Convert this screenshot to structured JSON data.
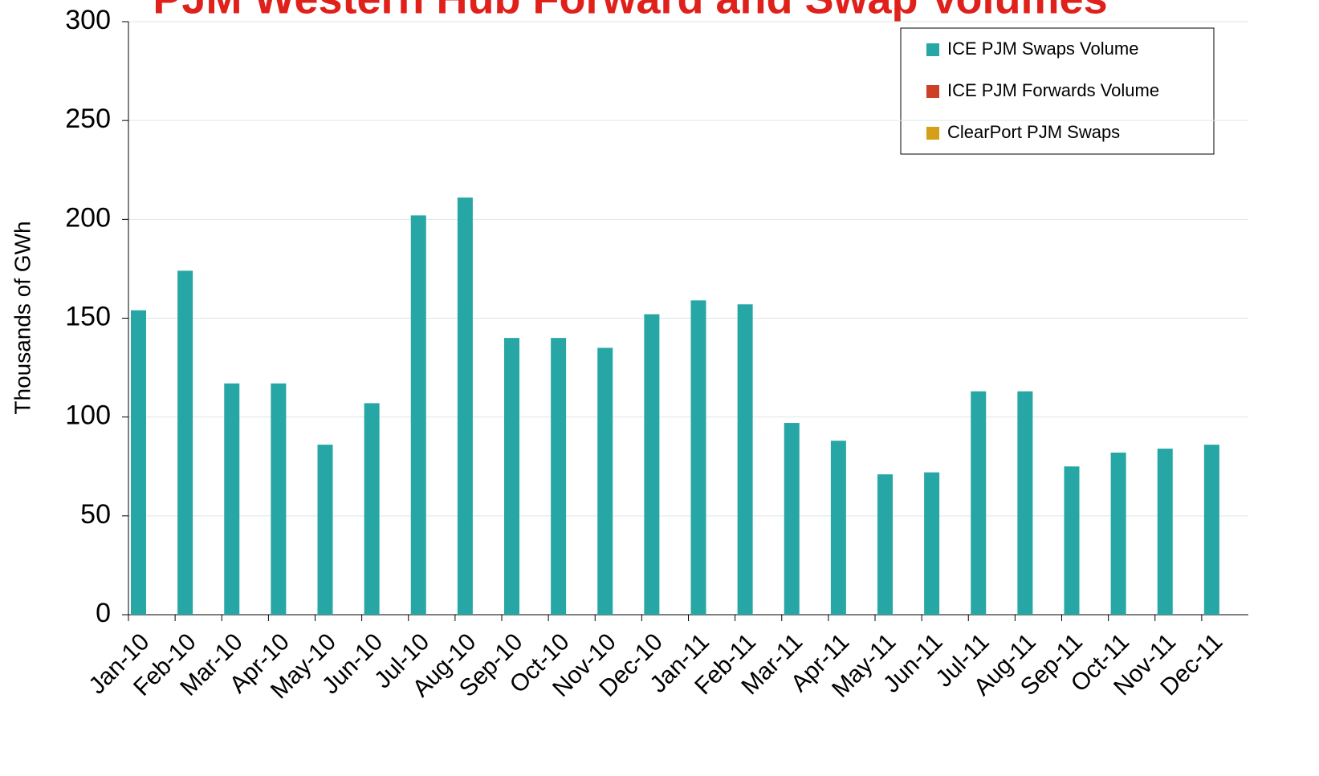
{
  "chart_data": {
    "type": "bar",
    "title": "PJM Western Hub Forward and Swap Volumes",
    "y_label": "Thousands of GWh",
    "categories": [
      "Jan-10",
      "Feb-10",
      "Mar-10",
      "Apr-10",
      "May-10",
      "Jun-10",
      "Jul-10",
      "Aug-10",
      "Sep-10",
      "Oct-10",
      "Nov-10",
      "Dec-10",
      "Jan-11",
      "Feb-11",
      "Mar-11",
      "Apr-11",
      "May-11",
      "Jun-11",
      "Jul-11",
      "Aug-11",
      "Sep-11",
      "Oct-11",
      "Nov-11",
      "Dec-11"
    ],
    "series": [
      {
        "name": "ICE PJM Swaps Volume",
        "color": "#26a6a4",
        "values": [
          154,
          174,
          117,
          117,
          86,
          107,
          202,
          211,
          140,
          140,
          135,
          152,
          159,
          157,
          97,
          88,
          71,
          72,
          113,
          113,
          75,
          82,
          84,
          86
        ]
      },
      {
        "name": "ICE PJM Forwards Volume",
        "color": "#cc4125",
        "values": [
          0,
          0,
          0,
          0,
          0,
          0,
          0,
          0,
          0,
          0,
          0,
          0,
          0,
          0,
          0,
          0,
          0,
          0,
          0,
          0,
          0,
          0,
          0,
          0
        ]
      },
      {
        "name": "ClearPort PJM Swaps",
        "color": "#d4a017",
        "values": [
          0,
          0,
          0,
          0,
          0,
          0,
          0,
          0,
          0,
          0,
          0,
          0,
          0,
          0,
          0,
          0,
          0,
          0,
          0,
          0,
          0,
          0,
          0,
          0
        ]
      }
    ],
    "ylim": [
      0,
      300
    ],
    "yticks": [
      0,
      50,
      100,
      150,
      200,
      250,
      300
    ],
    "grid": true
  }
}
